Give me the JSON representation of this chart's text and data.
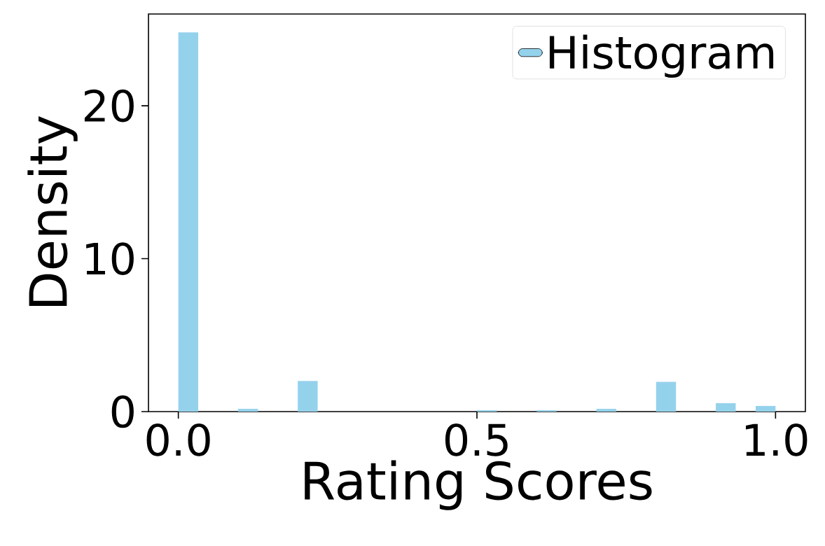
{
  "chart_data": {
    "type": "histogram",
    "xlabel": "Rating Scores",
    "ylabel": "Density",
    "bins": [
      0,
      0.0333,
      0.0667,
      0.1,
      0.1333,
      0.1667,
      0.2,
      0.2333,
      0.2667,
      0.3,
      0.3333,
      0.3667,
      0.4,
      0.4333,
      0.4667,
      0.5,
      0.5333,
      0.5667,
      0.6,
      0.6333,
      0.6667,
      0.7,
      0.7333,
      0.7667,
      0.8,
      0.8333,
      0.8667,
      0.9,
      0.9333,
      0.9667,
      1.0
    ],
    "series": [
      {
        "name": "Histogram",
        "color": "#94d2ec",
        "values": [
          24.8,
          0,
          0,
          0.18,
          0,
          0,
          2.0,
          0,
          0,
          0,
          0,
          0,
          0,
          0,
          0,
          0.09,
          0,
          0,
          0.09,
          0,
          0,
          0.18,
          0,
          0,
          1.94,
          0,
          0,
          0.55,
          0,
          0.37
        ]
      }
    ],
    "xlim": [
      -0.05,
      1.05
    ],
    "ylim": [
      0,
      26
    ],
    "xticks": [
      {
        "value": 0,
        "label": "0.0"
      },
      {
        "value": 0.5,
        "label": "0.5"
      },
      {
        "value": 1.0,
        "label": "1.0"
      }
    ],
    "yticks": [
      0,
      10,
      20
    ],
    "legend": "top right"
  }
}
